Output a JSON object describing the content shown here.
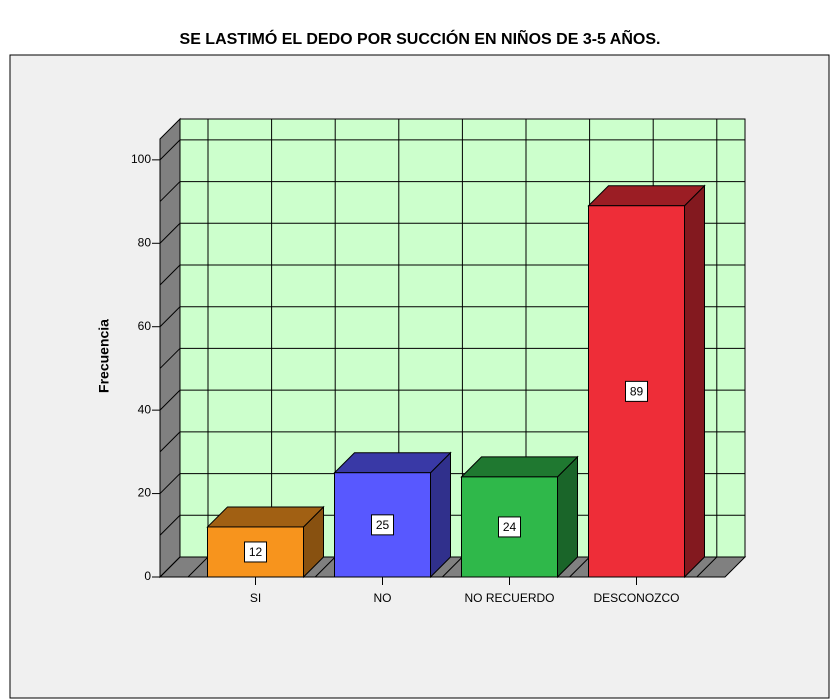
{
  "chart_data": {
    "type": "bar3d",
    "title": "SE LASTIMÓ EL DEDO POR SUCCIÓN EN NIÑOS  DE 3-5 AÑOS.",
    "y_label": "Frecuencia",
    "categories": [
      "SI",
      "NO",
      "NO RECUERDO",
      "DESCONOZCO"
    ],
    "values": [
      12,
      25,
      24,
      89
    ],
    "colors": [
      "#f7941d",
      "#5858ff",
      "#2fb84a",
      "#ee2d38"
    ],
    "ylim": [
      0,
      105
    ],
    "yticks": [
      0,
      20,
      40,
      60,
      80,
      100
    ],
    "minor_grid": [
      10,
      30,
      50,
      70,
      90
    ],
    "grid": true,
    "wall_color": "#ccffcc"
  }
}
